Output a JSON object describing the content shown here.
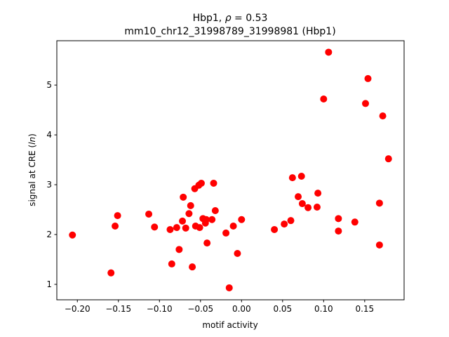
{
  "chart_data": {
    "type": "scatter",
    "title_line1_prefix": "Hbp1, ",
    "title_line1_rho": "ρ",
    "title_line1_suffix": " = 0.53",
    "title_line2": "mm10_chr12_31998789_31998981 (Hbp1)",
    "xlabel": "motif activity",
    "ylabel_prefix": "signal at CRE (",
    "ylabel_italic": "ln",
    "ylabel_suffix": ")",
    "xlim": [
      -0.225,
      0.198
    ],
    "ylim": [
      0.69,
      5.89
    ],
    "xticks": [
      -0.2,
      -0.15,
      -0.1,
      -0.05,
      0.0,
      0.05,
      0.1,
      0.15
    ],
    "xtick_labels": [
      "−0.20",
      "−0.15",
      "−0.10",
      "−0.05",
      "0.00",
      "0.05",
      "0.10",
      "0.15"
    ],
    "yticks": [
      1,
      2,
      3,
      4,
      5
    ],
    "ytick_labels": [
      "1",
      "2",
      "3",
      "4",
      "5"
    ],
    "grid": false,
    "marker_color": "#ff0000",
    "points": [
      [
        -0.206,
        1.99
      ],
      [
        -0.159,
        1.23
      ],
      [
        -0.154,
        2.17
      ],
      [
        -0.151,
        2.38
      ],
      [
        -0.113,
        2.41
      ],
      [
        -0.106,
        2.15
      ],
      [
        -0.087,
        2.1
      ],
      [
        -0.085,
        1.41
      ],
      [
        -0.079,
        2.14
      ],
      [
        -0.076,
        1.7
      ],
      [
        -0.072,
        2.27
      ],
      [
        -0.071,
        2.75
      ],
      [
        -0.068,
        2.13
      ],
      [
        -0.064,
        2.42
      ],
      [
        -0.062,
        2.58
      ],
      [
        -0.06,
        1.35
      ],
      [
        -0.057,
        2.92
      ],
      [
        -0.056,
        2.17
      ],
      [
        -0.052,
        2.99
      ],
      [
        -0.051,
        2.14
      ],
      [
        -0.049,
        3.03
      ],
      [
        -0.047,
        2.32
      ],
      [
        -0.044,
        2.23
      ],
      [
        -0.043,
        2.3
      ],
      [
        -0.042,
        1.83
      ],
      [
        -0.036,
        2.3
      ],
      [
        -0.034,
        3.03
      ],
      [
        -0.032,
        2.48
      ],
      [
        -0.019,
        2.03
      ],
      [
        -0.015,
        0.93
      ],
      [
        -0.01,
        2.17
      ],
      [
        -0.005,
        1.62
      ],
      [
        0.0,
        2.3
      ],
      [
        0.04,
        2.1
      ],
      [
        0.052,
        2.21
      ],
      [
        0.06,
        2.28
      ],
      [
        0.062,
        3.14
      ],
      [
        0.069,
        2.76
      ],
      [
        0.073,
        3.17
      ],
      [
        0.074,
        2.62
      ],
      [
        0.081,
        2.54
      ],
      [
        0.092,
        2.55
      ],
      [
        0.093,
        2.83
      ],
      [
        0.1,
        4.72
      ],
      [
        0.106,
        5.66
      ],
      [
        0.118,
        2.32
      ],
      [
        0.118,
        2.07
      ],
      [
        0.138,
        2.25
      ],
      [
        0.151,
        4.63
      ],
      [
        0.154,
        5.13
      ],
      [
        0.168,
        2.63
      ],
      [
        0.168,
        1.79
      ],
      [
        0.172,
        4.38
      ],
      [
        0.179,
        3.52
      ]
    ]
  }
}
